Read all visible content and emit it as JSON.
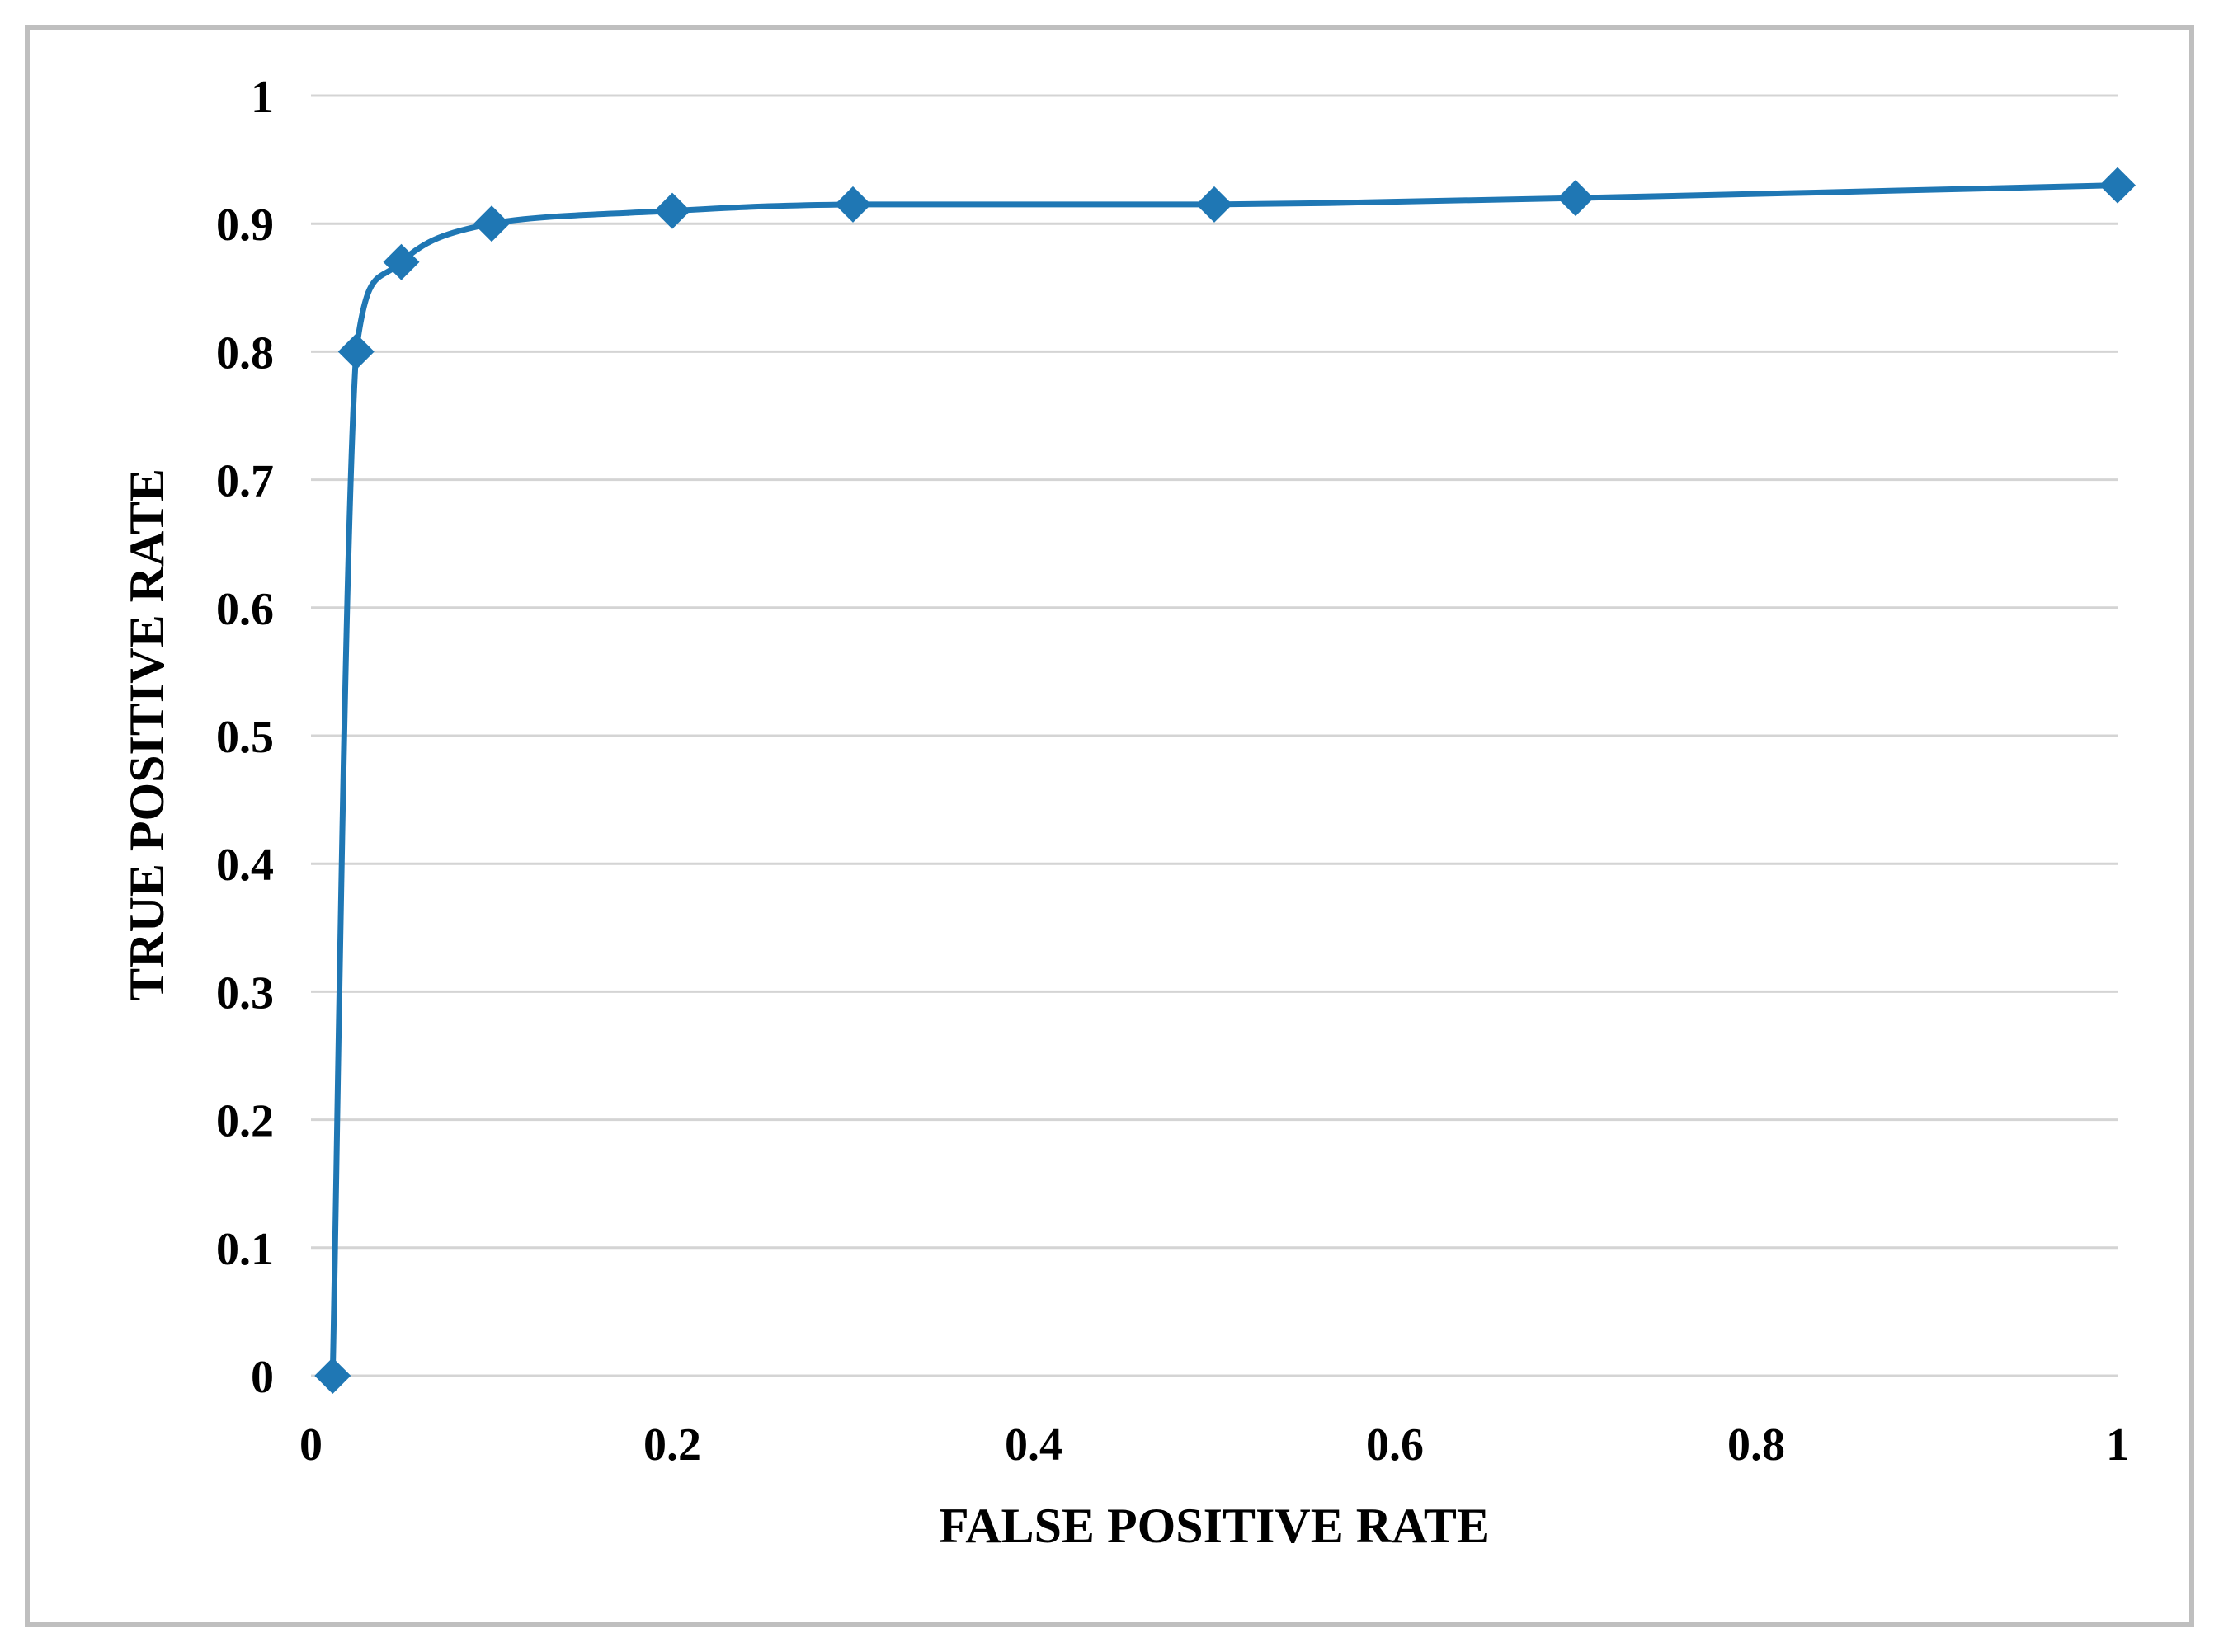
{
  "chart_data": {
    "type": "line",
    "title": "",
    "xlabel": "FALSE POSITIVE RATE",
    "ylabel": "TRUE POSITIVE RATE",
    "xlim": [
      0,
      1
    ],
    "ylim": [
      0,
      1
    ],
    "x_ticks": [
      "0",
      "0.2",
      "0.4",
      "0.6",
      "0.8",
      "1"
    ],
    "x_tick_values": [
      0,
      0.2,
      0.4,
      0.6,
      0.8,
      1
    ],
    "y_ticks": [
      "0",
      "0.1",
      "0.2",
      "0.3",
      "0.4",
      "0.5",
      "0.6",
      "0.7",
      "0.8",
      "0.9",
      "1"
    ],
    "y_tick_values": [
      0,
      0.1,
      0.2,
      0.3,
      0.4,
      0.5,
      0.6,
      0.7,
      0.8,
      0.9,
      1
    ],
    "grid": "horizontal",
    "legend": "none",
    "smoothed": true,
    "marker": "diamond",
    "series": [
      {
        "color": "#1f77b4",
        "points": [
          {
            "x": 0.012,
            "y": 0.0
          },
          {
            "x": 0.025,
            "y": 0.8
          },
          {
            "x": 0.05,
            "y": 0.87
          },
          {
            "x": 0.1,
            "y": 0.9
          },
          {
            "x": 0.2,
            "y": 0.91
          },
          {
            "x": 0.3,
            "y": 0.915
          },
          {
            "x": 0.5,
            "y": 0.915
          },
          {
            "x": 0.7,
            "y": 0.92
          },
          {
            "x": 1.0,
            "y": 0.93
          }
        ]
      }
    ]
  }
}
